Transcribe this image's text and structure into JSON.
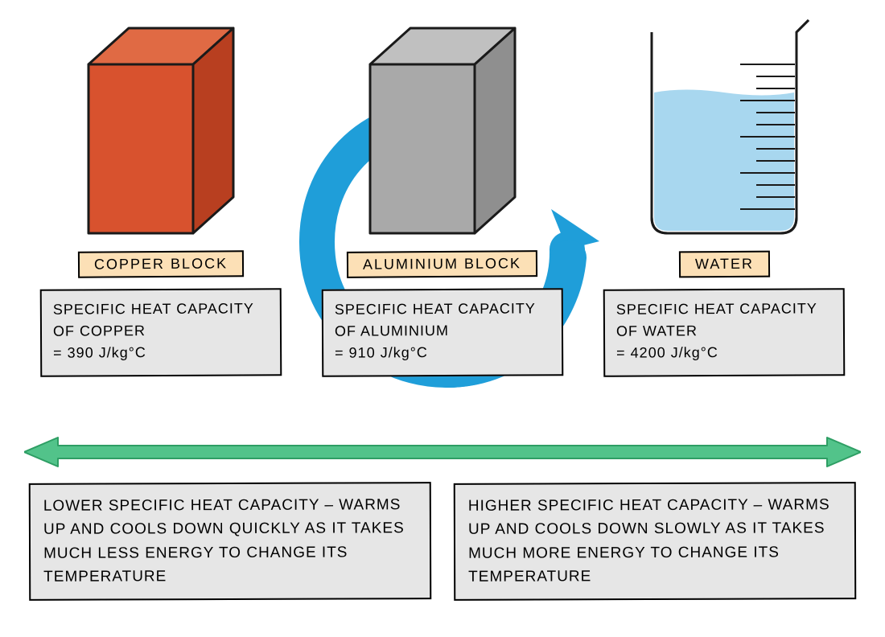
{
  "colors": {
    "chip_bg": "#fce0b6",
    "info_bg": "#e6e6e6",
    "arrow": "#52c38a",
    "arrow_stroke": "#2e9e64",
    "swirl": "#1f9ed9",
    "copper_front": "#d8522e",
    "copper_top": "#e06a44",
    "copper_side": "#b83f20",
    "alu_front": "#a9a9a9",
    "alu_top": "#c0c0c0",
    "alu_side": "#8f8f8f",
    "beaker_water": "#a8d7ef",
    "beaker_glass": "#ffffff",
    "outline": "#1a1a1a"
  },
  "items": [
    {
      "key": "copper",
      "title": "COPPER  BLOCK",
      "info": "SPECIFIC  HEAT  CAPACITY OF  COPPER\n=  390  J/kg°C",
      "value_jper_kgc": 390
    },
    {
      "key": "aluminium",
      "title": "ALUMINIUM  BLOCK",
      "info": "SPECIFIC  HEAT  CAPACITY OF  ALUMINIUM\n=  910  J/kg°C",
      "value_jper_kgc": 910
    },
    {
      "key": "water",
      "title": "WATER",
      "info": "SPECIFIC  HEAT  CAPACITY OF  WATER\n=  4200  J/kg°C",
      "value_jper_kgc": 4200
    }
  ],
  "explain_left": "LOWER  SPECIFIC  HEAT  CAPACITY – WARMS  UP  AND  COOLS  DOWN  QUICKLY AS  IT  TAKES  MUCH  LESS  ENERGY  TO CHANGE  ITS  TEMPERATURE",
  "explain_right": "HIGHER  SPECIFIC  HEAT  CAPACITY – WARMS  UP  AND  COOLS  DOWN  SLOWLY AS  IT  TAKES  MUCH  MORE  ENERGY TO  CHANGE  ITS  TEMPERATURE"
}
